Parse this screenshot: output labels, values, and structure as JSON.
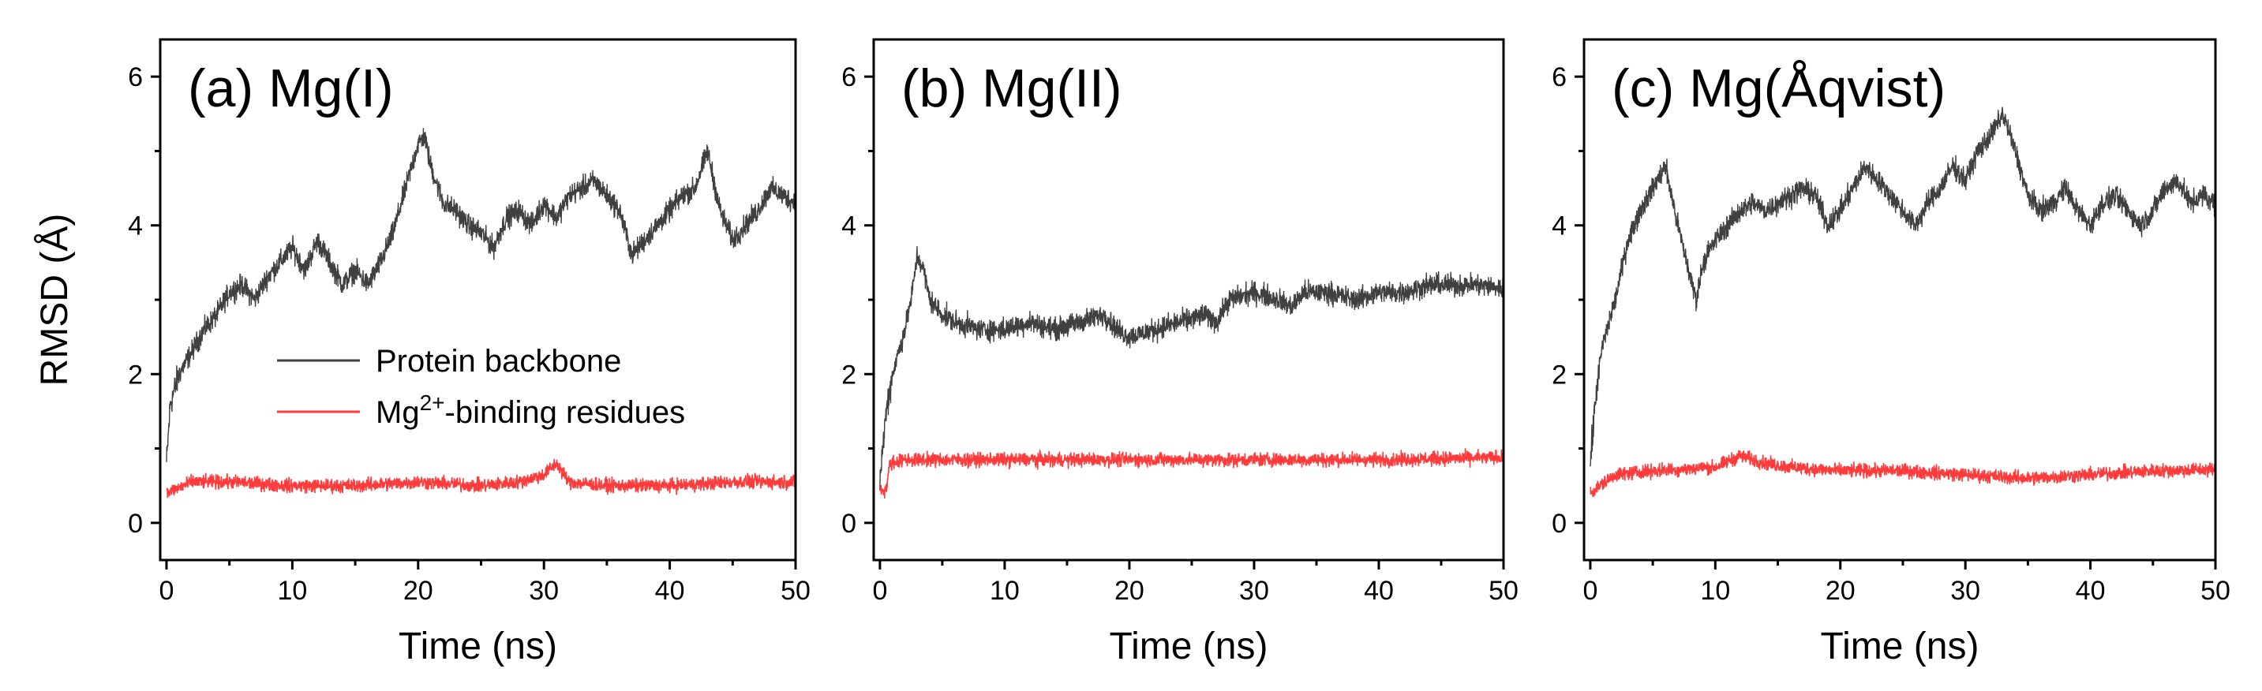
{
  "chart_data": [
    {
      "type": "line",
      "title": "(a) Mg(I)",
      "xlabel": "Time (ns)",
      "ylabel": "RMSD (Å)",
      "xlim": [
        -0.5,
        50
      ],
      "ylim": [
        -0.5,
        6.5
      ],
      "xticks": [
        0,
        10,
        20,
        30,
        40,
        50
      ],
      "yticks": [
        0,
        2,
        4,
        6
      ],
      "legend": {
        "position": "middle-left",
        "entries": [
          {
            "label": "Protein backbone",
            "color": "#404040"
          },
          {
            "label_main": "Mg",
            "label_sup": "2+",
            "label_rest": "-binding residues",
            "color": "#ff3b3b"
          }
        ]
      },
      "series": [
        {
          "name": "Protein backbone",
          "color": "#404040",
          "points": [
            [
              0,
              0.8
            ],
            [
              0.3,
              1.6
            ],
            [
              1,
              2.0
            ],
            [
              2,
              2.3
            ],
            [
              3,
              2.6
            ],
            [
              4,
              2.8
            ],
            [
              5,
              3.1
            ],
            [
              6,
              3.2
            ],
            [
              7,
              3.0
            ],
            [
              8,
              3.3
            ],
            [
              9,
              3.5
            ],
            [
              10,
              3.7
            ],
            [
              11,
              3.4
            ],
            [
              12,
              3.8
            ],
            [
              13,
              3.5
            ],
            [
              14,
              3.2
            ],
            [
              15,
              3.4
            ],
            [
              16,
              3.2
            ],
            [
              17,
              3.5
            ],
            [
              18,
              3.9
            ],
            [
              19,
              4.5
            ],
            [
              20,
              5.1
            ],
            [
              20.5,
              5.2
            ],
            [
              21,
              4.8
            ],
            [
              22,
              4.3
            ],
            [
              23,
              4.2
            ],
            [
              24,
              4.0
            ],
            [
              25,
              3.9
            ],
            [
              26,
              3.7
            ],
            [
              27,
              4.1
            ],
            [
              28,
              4.2
            ],
            [
              29,
              4.0
            ],
            [
              30,
              4.3
            ],
            [
              31,
              4.1
            ],
            [
              32,
              4.4
            ],
            [
              33,
              4.5
            ],
            [
              34,
              4.6
            ],
            [
              35,
              4.4
            ],
            [
              36,
              4.2
            ],
            [
              37,
              3.6
            ],
            [
              38,
              3.8
            ],
            [
              39,
              4.0
            ],
            [
              40,
              4.2
            ],
            [
              41,
              4.4
            ],
            [
              42,
              4.5
            ],
            [
              43,
              5.0
            ],
            [
              44,
              4.2
            ],
            [
              45,
              3.8
            ],
            [
              46,
              4.0
            ],
            [
              47,
              4.2
            ],
            [
              48,
              4.5
            ],
            [
              49,
              4.4
            ],
            [
              50,
              4.3
            ]
          ]
        },
        {
          "name": "Mg2+-binding residues",
          "color": "#ff3b3b",
          "points": [
            [
              0,
              0.4
            ],
            [
              2,
              0.55
            ],
            [
              5,
              0.55
            ],
            [
              10,
              0.5
            ],
            [
              15,
              0.5
            ],
            [
              20,
              0.55
            ],
            [
              25,
              0.5
            ],
            [
              28,
              0.55
            ],
            [
              30,
              0.65
            ],
            [
              31,
              0.8
            ],
            [
              32,
              0.55
            ],
            [
              35,
              0.5
            ],
            [
              40,
              0.5
            ],
            [
              45,
              0.55
            ],
            [
              50,
              0.55
            ]
          ]
        }
      ]
    },
    {
      "type": "line",
      "title": "(b) Mg(II)",
      "xlabel": "Time (ns)",
      "ylabel": "",
      "xlim": [
        -0.5,
        50
      ],
      "ylim": [
        -0.5,
        6.5
      ],
      "xticks": [
        0,
        10,
        20,
        30,
        40,
        50
      ],
      "yticks": [
        0,
        2,
        4,
        6
      ],
      "series": [
        {
          "name": "Protein backbone",
          "color": "#404040",
          "points": [
            [
              0,
              0.6
            ],
            [
              0.5,
              1.5
            ],
            [
              1,
              2.0
            ],
            [
              2,
              2.6
            ],
            [
              2.5,
              3.0
            ],
            [
              3,
              3.6
            ],
            [
              3.5,
              3.4
            ],
            [
              4,
              3.0
            ],
            [
              5,
              2.8
            ],
            [
              6,
              2.7
            ],
            [
              8,
              2.6
            ],
            [
              10,
              2.6
            ],
            [
              12,
              2.7
            ],
            [
              14,
              2.6
            ],
            [
              16,
              2.7
            ],
            [
              18,
              2.8
            ],
            [
              19,
              2.6
            ],
            [
              20,
              2.5
            ],
            [
              22,
              2.6
            ],
            [
              24,
              2.7
            ],
            [
              26,
              2.8
            ],
            [
              27,
              2.7
            ],
            [
              28,
              3.0
            ],
            [
              30,
              3.1
            ],
            [
              32,
              3.0
            ],
            [
              33,
              2.9
            ],
            [
              34,
              3.1
            ],
            [
              36,
              3.1
            ],
            [
              38,
              3.0
            ],
            [
              40,
              3.1
            ],
            [
              42,
              3.1
            ],
            [
              44,
              3.2
            ],
            [
              46,
              3.2
            ],
            [
              48,
              3.2
            ],
            [
              50,
              3.15
            ]
          ]
        },
        {
          "name": "Mg2+-binding residues",
          "color": "#ff3b3b",
          "points": [
            [
              0,
              0.45
            ],
            [
              0.5,
              0.45
            ],
            [
              0.8,
              0.8
            ],
            [
              2,
              0.85
            ],
            [
              10,
              0.85
            ],
            [
              20,
              0.85
            ],
            [
              30,
              0.85
            ],
            [
              40,
              0.85
            ],
            [
              50,
              0.88
            ]
          ]
        }
      ]
    },
    {
      "type": "line",
      "title": "(c) Mg(Åqvist)",
      "xlabel": "Time (ns)",
      "ylabel": "",
      "xlim": [
        -0.5,
        50
      ],
      "ylim": [
        -0.5,
        6.5
      ],
      "xticks": [
        0,
        10,
        20,
        30,
        40,
        50
      ],
      "yticks": [
        0,
        2,
        4,
        6
      ],
      "series": [
        {
          "name": "Protein backbone",
          "color": "#404040",
          "points": [
            [
              0,
              0.8
            ],
            [
              0.5,
              1.8
            ],
            [
              1,
              2.4
            ],
            [
              2,
              3.0
            ],
            [
              3,
              3.8
            ],
            [
              4,
              4.2
            ],
            [
              5,
              4.5
            ],
            [
              6,
              4.8
            ],
            [
              7,
              4.0
            ],
            [
              8,
              3.3
            ],
            [
              8.5,
              3.0
            ],
            [
              9,
              3.5
            ],
            [
              10,
              3.8
            ],
            [
              11,
              4.0
            ],
            [
              12,
              4.2
            ],
            [
              13,
              4.3
            ],
            [
              14,
              4.2
            ],
            [
              15,
              4.3
            ],
            [
              16,
              4.4
            ],
            [
              17,
              4.5
            ],
            [
              18,
              4.4
            ],
            [
              19,
              4.0
            ],
            [
              20,
              4.2
            ],
            [
              21,
              4.5
            ],
            [
              22,
              4.8
            ],
            [
              23,
              4.6
            ],
            [
              24,
              4.4
            ],
            [
              25,
              4.2
            ],
            [
              26,
              4.0
            ],
            [
              27,
              4.3
            ],
            [
              28,
              4.5
            ],
            [
              29,
              4.8
            ],
            [
              30,
              4.6
            ],
            [
              31,
              5.0
            ],
            [
              32,
              5.2
            ],
            [
              33,
              5.5
            ],
            [
              34,
              5.0
            ],
            [
              35,
              4.4
            ],
            [
              36,
              4.2
            ],
            [
              37,
              4.3
            ],
            [
              38,
              4.5
            ],
            [
              39,
              4.2
            ],
            [
              40,
              4.0
            ],
            [
              41,
              4.3
            ],
            [
              42,
              4.4
            ],
            [
              43,
              4.2
            ],
            [
              44,
              4.0
            ],
            [
              45,
              4.2
            ],
            [
              46,
              4.5
            ],
            [
              47,
              4.6
            ],
            [
              48,
              4.3
            ],
            [
              49,
              4.4
            ],
            [
              50,
              4.3
            ]
          ]
        },
        {
          "name": "Mg2+-binding residues",
          "color": "#ff3b3b",
          "points": [
            [
              0,
              0.4
            ],
            [
              2,
              0.65
            ],
            [
              5,
              0.7
            ],
            [
              10,
              0.75
            ],
            [
              12,
              0.9
            ],
            [
              14,
              0.8
            ],
            [
              16,
              0.75
            ],
            [
              20,
              0.7
            ],
            [
              25,
              0.7
            ],
            [
              30,
              0.65
            ],
            [
              35,
              0.6
            ],
            [
              40,
              0.65
            ],
            [
              45,
              0.7
            ],
            [
              50,
              0.72
            ]
          ]
        }
      ]
    }
  ]
}
